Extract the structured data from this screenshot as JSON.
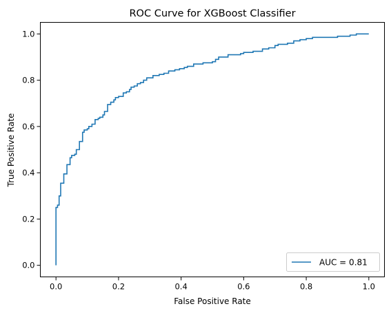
{
  "chart_data": {
    "type": "line",
    "title": "ROC Curve for XGBoost Classifier",
    "xlabel": "False Positive Rate",
    "ylabel": "True Positive Rate",
    "xlim": [
      -0.05,
      1.05
    ],
    "ylim": [
      -0.05,
      1.05
    ],
    "x_ticks": [
      "0.0",
      "0.2",
      "0.4",
      "0.6",
      "0.8",
      "1.0"
    ],
    "y_ticks": [
      "0.0",
      "0.2",
      "0.4",
      "0.6",
      "0.8",
      "1.0"
    ],
    "grid": false,
    "legend_position": "lower-right",
    "series": [
      {
        "name": "AUC = 0.81",
        "color": "#1f77b4",
        "step": true,
        "x": [
          0.0,
          0.0,
          0.005,
          0.01,
          0.015,
          0.025,
          0.035,
          0.045,
          0.05,
          0.06,
          0.065,
          0.075,
          0.085,
          0.09,
          0.1,
          0.105,
          0.115,
          0.125,
          0.135,
          0.14,
          0.15,
          0.155,
          0.165,
          0.175,
          0.185,
          0.19,
          0.2,
          0.215,
          0.225,
          0.235,
          0.24,
          0.25,
          0.26,
          0.27,
          0.28,
          0.29,
          0.31,
          0.33,
          0.345,
          0.36,
          0.38,
          0.395,
          0.41,
          0.42,
          0.44,
          0.47,
          0.5,
          0.51,
          0.52,
          0.55,
          0.59,
          0.6,
          0.63,
          0.66,
          0.68,
          0.7,
          0.71,
          0.74,
          0.76,
          0.78,
          0.8,
          0.82,
          0.84,
          0.87,
          0.9,
          0.94,
          0.96,
          0.98,
          1.0
        ],
        "y": [
          0.0,
          0.25,
          0.26,
          0.3,
          0.355,
          0.395,
          0.435,
          0.465,
          0.475,
          0.48,
          0.5,
          0.535,
          0.575,
          0.585,
          0.59,
          0.6,
          0.61,
          0.63,
          0.635,
          0.64,
          0.65,
          0.665,
          0.695,
          0.705,
          0.715,
          0.725,
          0.73,
          0.745,
          0.75,
          0.76,
          0.77,
          0.775,
          0.785,
          0.79,
          0.8,
          0.81,
          0.82,
          0.825,
          0.83,
          0.84,
          0.845,
          0.85,
          0.855,
          0.86,
          0.87,
          0.875,
          0.88,
          0.89,
          0.9,
          0.91,
          0.915,
          0.92,
          0.925,
          0.935,
          0.94,
          0.95,
          0.955,
          0.96,
          0.97,
          0.975,
          0.98,
          0.985,
          0.985,
          0.985,
          0.99,
          0.995,
          1.0,
          1.0,
          1.0
        ]
      }
    ]
  }
}
